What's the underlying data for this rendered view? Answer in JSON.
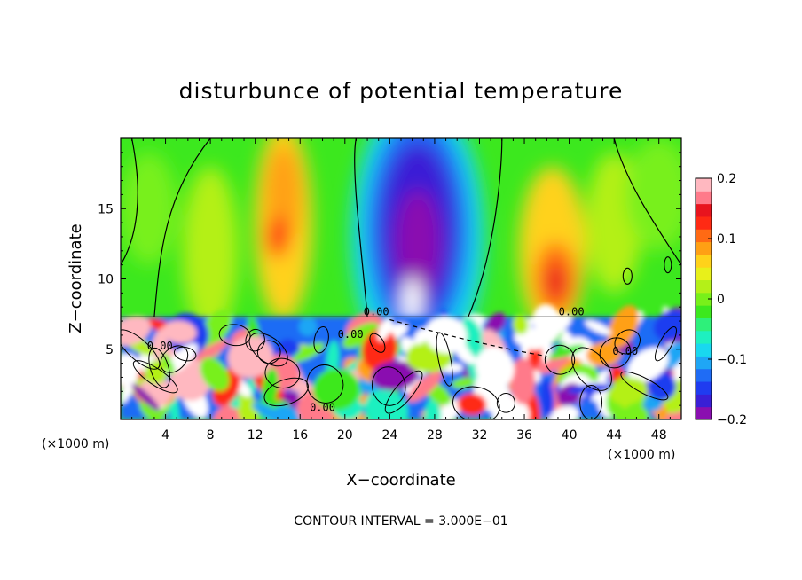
{
  "chart_data": {
    "type": "heatmap",
    "title": "disturbunce of potential temperature",
    "xlabel": "X−coordinate",
    "ylabel": "Z−coordinate",
    "x_unit": "(×1000 m)",
    "x_unit_right": "(×1000 m)",
    "footer": "CONTOUR INTERVAL = 3.000E−01",
    "xlim": [
      0,
      50
    ],
    "ylim": [
      0,
      20
    ],
    "x_ticks": [
      "4",
      "8",
      "12",
      "16",
      "20",
      "24",
      "28",
      "32",
      "36",
      "40",
      "44",
      "48"
    ],
    "x_tick_values": [
      4,
      8,
      12,
      16,
      20,
      24,
      28,
      32,
      36,
      40,
      44,
      48
    ],
    "y_ticks": [
      "5",
      "10",
      "15"
    ],
    "y_tick_values": [
      5,
      10,
      15
    ],
    "colorbar": {
      "range": [
        -0.2,
        0.2
      ],
      "tick_labels": [
        "0.2",
        "0.1",
        "0",
        "−0.1",
        "−0.2"
      ],
      "tick_values": [
        0.2,
        0.1,
        0,
        -0.1,
        -0.2
      ],
      "colors": [
        "#8a0fb0",
        "#3a1fd6",
        "#1f3cf0",
        "#1f6cf5",
        "#1fa6f5",
        "#19d8ef",
        "#1ef0c0",
        "#2ef07a",
        "#3ce81e",
        "#78f01a",
        "#b4f018",
        "#e8f01a",
        "#ffd21a",
        "#ffa014",
        "#ff6a14",
        "#ff2a14",
        "#e8141e",
        "#ff7a8a",
        "#ffb8c0"
      ]
    },
    "contour_labels": [
      "0.00",
      "0.00",
      "0.00",
      "0.00",
      "0.00",
      "0.00"
    ],
    "inversion_height": 7.3,
    "upper_features": [
      {
        "x": 26.5,
        "z": 14,
        "value": -0.2,
        "kind": "cold-dome"
      },
      {
        "x": 14.5,
        "z": 15,
        "value": 0.12,
        "kind": "warm-plume"
      },
      {
        "x": 38.5,
        "z": 10,
        "value": 0.12,
        "kind": "warm-plume"
      }
    ]
  }
}
